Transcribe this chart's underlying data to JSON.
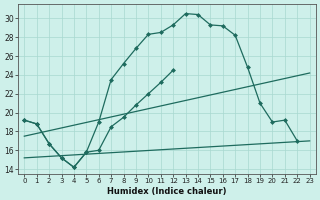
{
  "bg_color": "#cef0ea",
  "grid_color": "#a8d8d0",
  "line_color": "#1e6b5e",
  "xlabel": "Humidex (Indice chaleur)",
  "xlim": [
    -0.5,
    23.5
  ],
  "ylim": [
    13.5,
    31.5
  ],
  "xticks": [
    0,
    1,
    2,
    3,
    4,
    5,
    6,
    7,
    8,
    9,
    10,
    11,
    12,
    13,
    14,
    15,
    16,
    17,
    18,
    19,
    20,
    21,
    22,
    23
  ],
  "yticks": [
    14,
    16,
    18,
    20,
    22,
    24,
    26,
    28,
    30
  ],
  "line1_x": [
    0,
    1,
    2,
    3,
    4,
    5,
    6,
    7,
    8,
    9,
    10,
    11,
    12,
    13,
    14,
    15,
    16,
    17,
    18,
    19,
    20,
    21,
    22
  ],
  "line1_y": [
    19.2,
    18.8,
    16.7,
    15.2,
    14.2,
    15.8,
    19.0,
    23.5,
    25.2,
    26.8,
    28.3,
    28.5,
    29.3,
    30.5,
    30.4,
    29.3,
    29.2,
    28.2,
    24.8,
    21.0,
    19.0,
    19.2,
    17.0
  ],
  "line2_x": [
    0,
    1,
    2,
    3,
    4,
    5,
    6,
    7,
    8,
    9,
    10,
    11,
    12
  ],
  "line2_y": [
    19.2,
    18.8,
    16.7,
    15.2,
    14.2,
    15.8,
    16.0,
    18.5,
    19.5,
    20.8,
    22.0,
    23.2,
    24.5
  ],
  "line3_x": [
    0,
    23
  ],
  "line3_y": [
    17.5,
    24.2
  ],
  "line4_x": [
    0,
    23
  ],
  "line4_y": [
    15.2,
    17.0
  ]
}
